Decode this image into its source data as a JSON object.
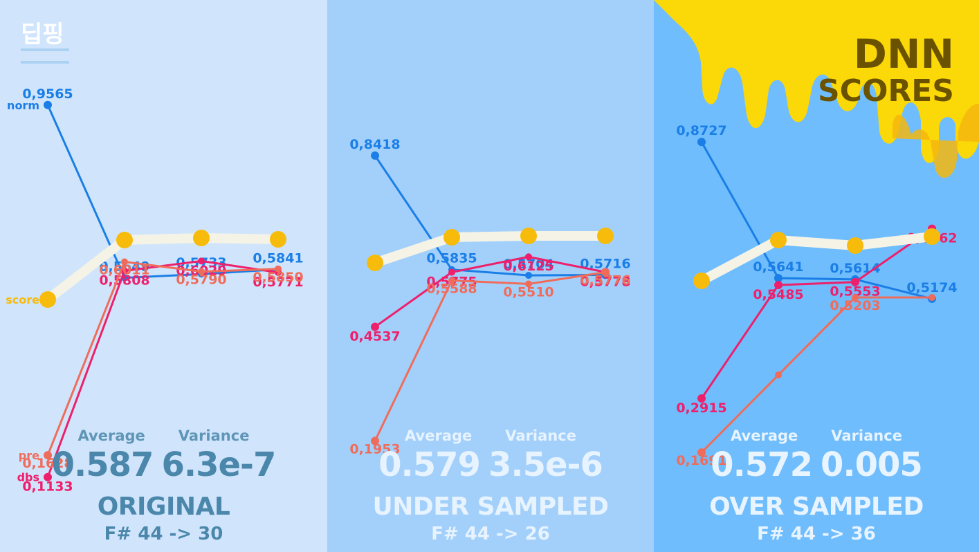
{
  "logo": {
    "text": "딥핑"
  },
  "header": {
    "line1": "DNN",
    "line2": "SCORES"
  },
  "colors": {
    "norm": "#1a7ee6",
    "dbs": "#ee1f6b",
    "pre": "#f06c5a",
    "score": "#f7bb0c",
    "score_line": "#f5f3e6"
  },
  "stat_labels": {
    "average": "Average",
    "variance": "Variance"
  },
  "panels": [
    {
      "title": "ORIGINAL",
      "subtitle": "F# 44 -> 30",
      "average": "0.587",
      "variance": "6.3e-7"
    },
    {
      "title": "UNDER SAMPLED",
      "subtitle": "F# 44 -> 26",
      "average": "0.579",
      "variance": "3.5e-6"
    },
    {
      "title": "OVER SAMPLED",
      "subtitle": "F# 44 -> 36",
      "average": "0.572",
      "variance": "0.005"
    }
  ],
  "chart_data": [
    {
      "type": "line",
      "title": "ORIGINAL",
      "x": [
        1,
        2,
        3,
        4
      ],
      "series": [
        {
          "name": "norm",
          "values": [
            0.9565,
            0.5649,
            0.5733,
            0.5841
          ]
        },
        {
          "name": "dbs",
          "values": [
            0.1133,
            0.5808,
            0.6029,
            0.5771
          ]
        },
        {
          "name": "pre",
          "values": [
            0.1628,
            0.6011,
            0.579,
            0.585
          ]
        },
        {
          "name": "score",
          "values": [
            null,
            null,
            null,
            null
          ]
        }
      ]
    },
    {
      "type": "line",
      "title": "UNDER SAMPLED",
      "x": [
        1,
        2,
        3,
        4
      ],
      "series": [
        {
          "values": [
            0.8418,
            0.5835,
            0.5704,
            0.5716
          ]
        },
        {
          "values": [
            0.4537,
            0.5775,
            0.6125,
            0.5778
          ]
        },
        {
          "values": [
            0.1953,
            0.5588,
            0.551,
            0.5776
          ]
        },
        {
          "values": [
            null,
            null,
            null,
            null
          ]
        }
      ]
    },
    {
      "type": "line",
      "title": "OVER SAMPLED",
      "x": [
        1,
        2,
        3,
        4
      ],
      "series": [
        {
          "values": [
            0.8727,
            0.5641,
            0.5614,
            0.5174
          ]
        },
        {
          "values": [
            0.2915,
            0.5485,
            0.5553,
            0.6762
          ]
        },
        {
          "values": [
            0.1691,
            null,
            0.5203,
            null
          ]
        },
        {
          "values": [
            null,
            null,
            null,
            null
          ]
        }
      ]
    }
  ]
}
